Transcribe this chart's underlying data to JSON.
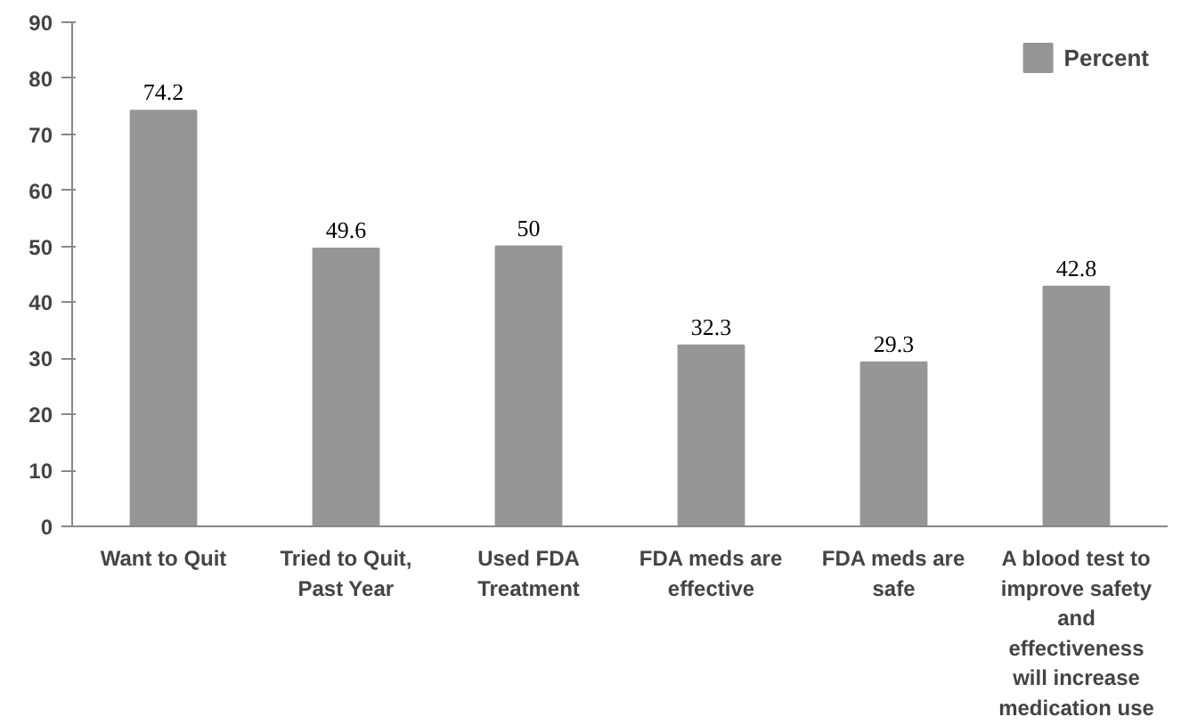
{
  "chart_data": {
    "type": "bar",
    "categories": [
      "Want to Quit",
      "Tried to Quit, Past Year",
      "Used FDA Treatment",
      "FDA meds are effective",
      "FDA meds are safe",
      "A blood test to improve safety and effectiveness will increase medication use"
    ],
    "series": [
      {
        "name": "Percent",
        "color": "#969696",
        "values": [
          74.2,
          49.6,
          50,
          32.3,
          29.3,
          42.8
        ]
      }
    ],
    "data_labels": true,
    "ylim": [
      0,
      90
    ],
    "yticks": [
      0,
      10,
      20,
      30,
      40,
      50,
      60,
      70,
      80,
      90
    ],
    "grid": false,
    "legend": "top right"
  }
}
